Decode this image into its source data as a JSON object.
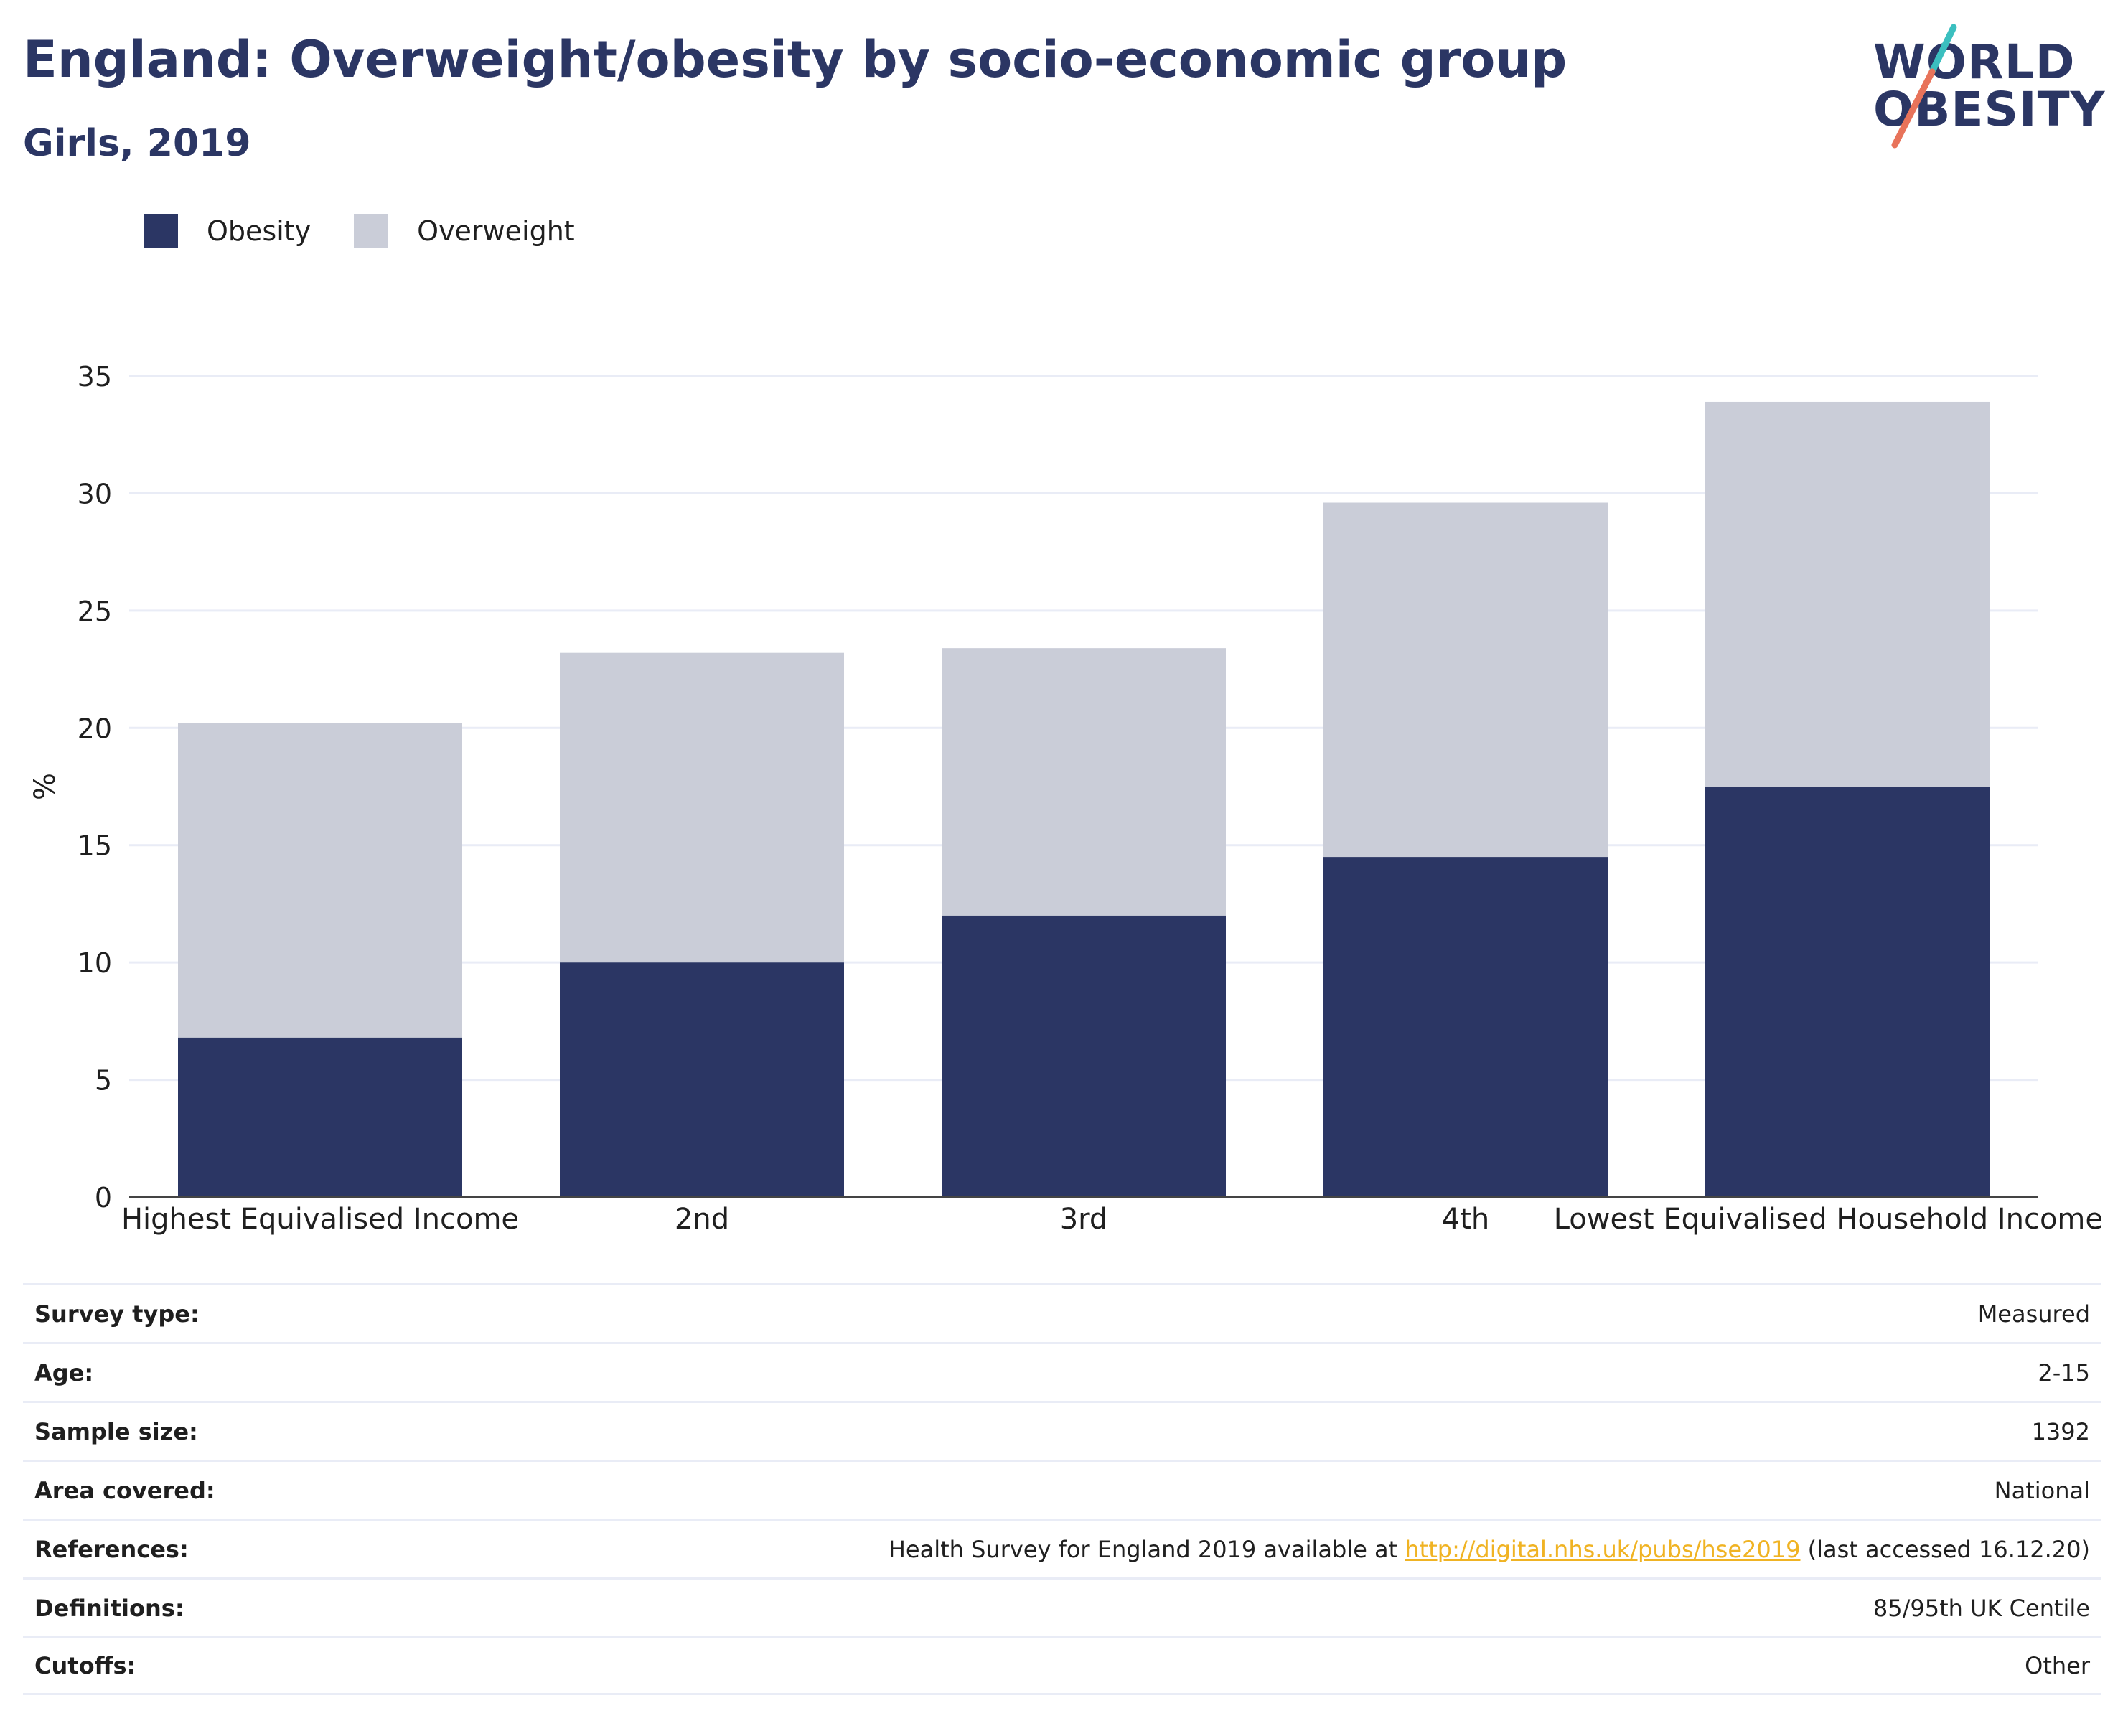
{
  "header": {
    "title": "England: Overweight/obesity by socio-economic group",
    "subtitle": "Girls, 2019"
  },
  "logo": {
    "line1": "WORLD",
    "line2": "OBESITY",
    "accent_teal": "#3bbfbf",
    "accent_coral": "#e8735a"
  },
  "colors": {
    "obesity": "#2b3664",
    "overweight": "#cacdd8",
    "grid": "#e9ecf6",
    "axis": "#444444"
  },
  "chart_data": {
    "type": "bar",
    "stacked": true,
    "categories": [
      "Highest Equivalised Income",
      "2nd",
      "3rd",
      "4th",
      "Lowest Equivalised Household Income"
    ],
    "series": [
      {
        "name": "Obesity",
        "values": [
          6.8,
          10.0,
          12.0,
          14.5,
          17.5
        ]
      },
      {
        "name": "Overweight",
        "values": [
          13.4,
          13.2,
          11.4,
          15.1,
          16.4
        ]
      }
    ],
    "ylabel": "%",
    "ylim": [
      0,
      35
    ],
    "yticks": [
      0,
      5,
      10,
      15,
      20,
      25,
      30,
      35
    ],
    "grid": true,
    "legend_position": "top-left"
  },
  "info": {
    "rows": [
      {
        "key": "Survey type:",
        "value": "Measured"
      },
      {
        "key": "Age:",
        "value": "2-15"
      },
      {
        "key": "Sample size:",
        "value": "1392"
      },
      {
        "key": "Area covered:",
        "value": "National"
      },
      {
        "key": "References:",
        "value_prefix": "Health Survey for England 2019 available at ",
        "link": "http://digital.nhs.uk/pubs/hse2019",
        "value_suffix": " (last accessed 16.12.20)"
      },
      {
        "key": "Definitions:",
        "value": "85/95th UK Centile"
      },
      {
        "key": "Cutoffs:",
        "value": "Other"
      }
    ]
  }
}
